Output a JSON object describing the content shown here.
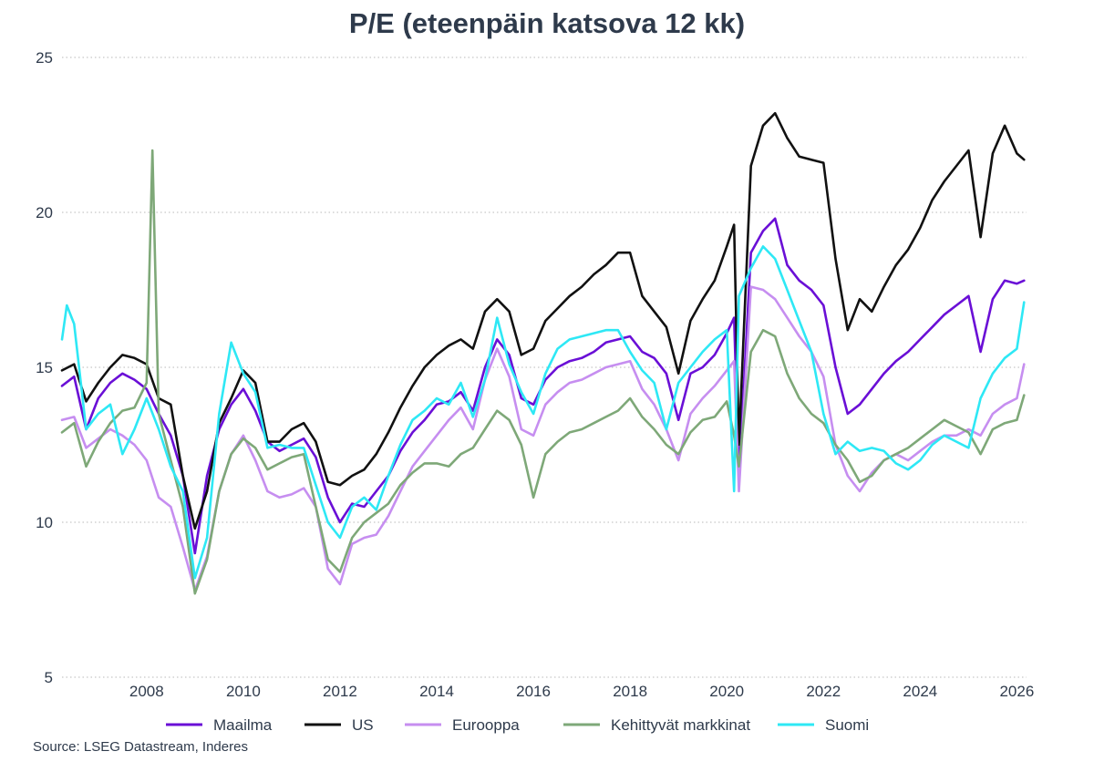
{
  "chart_data": {
    "type": "line",
    "title": "P/E (eteenpäin katsova 12 kk)",
    "source": "Source: LSEG Datastream, Inderes",
    "xlabel": "",
    "ylabel": "",
    "xlim": [
      2006.25,
      2026.2
    ],
    "ylim": [
      5,
      25
    ],
    "y_ticks": [
      5,
      10,
      15,
      20,
      25
    ],
    "x_ticks": [
      2008,
      2010,
      2012,
      2014,
      2016,
      2018,
      2020,
      2022,
      2024,
      2026
    ],
    "grid": "horizontal dotted",
    "legend_position": "bottom",
    "series": [
      {
        "name": "Maailma",
        "color": "#6a0fd6",
        "x": [
          2006.25,
          2006.5,
          2006.75,
          2007.0,
          2007.25,
          2007.5,
          2007.75,
          2008.0,
          2008.25,
          2008.5,
          2008.75,
          2009.0,
          2009.25,
          2009.5,
          2009.75,
          2010.0,
          2010.25,
          2010.5,
          2010.75,
          2011.0,
          2011.25,
          2011.5,
          2011.75,
          2012.0,
          2012.25,
          2012.5,
          2012.75,
          2013.0,
          2013.25,
          2013.5,
          2013.75,
          2014.0,
          2014.25,
          2014.5,
          2014.75,
          2015.0,
          2015.25,
          2015.5,
          2015.75,
          2016.0,
          2016.25,
          2016.5,
          2016.75,
          2017.0,
          2017.25,
          2017.5,
          2017.75,
          2018.0,
          2018.25,
          2018.5,
          2018.75,
          2019.0,
          2019.25,
          2019.5,
          2019.75,
          2020.0,
          2020.15,
          2020.25,
          2020.5,
          2020.75,
          2021.0,
          2021.25,
          2021.5,
          2021.75,
          2022.0,
          2022.25,
          2022.5,
          2022.75,
          2023.0,
          2023.25,
          2023.5,
          2023.75,
          2024.0,
          2024.25,
          2024.5,
          2024.75,
          2025.0,
          2025.25,
          2025.5,
          2025.75,
          2026.0,
          2026.15
        ],
        "values": [
          14.4,
          14.7,
          13.0,
          14.0,
          14.5,
          14.8,
          14.6,
          14.3,
          13.5,
          12.8,
          11.5,
          9.0,
          11.5,
          13.0,
          13.8,
          14.3,
          13.6,
          12.6,
          12.3,
          12.5,
          12.7,
          12.1,
          10.8,
          10.0,
          10.6,
          10.5,
          11.0,
          11.5,
          12.3,
          12.9,
          13.3,
          13.8,
          13.9,
          14.2,
          13.6,
          15.0,
          15.9,
          15.4,
          14.0,
          13.8,
          14.6,
          15.0,
          15.2,
          15.3,
          15.5,
          15.8,
          15.9,
          16.0,
          15.5,
          15.3,
          14.8,
          13.3,
          14.8,
          15.0,
          15.4,
          16.1,
          16.6,
          11.5,
          18.7,
          19.4,
          19.8,
          18.3,
          17.8,
          17.5,
          17.0,
          15.0,
          13.5,
          13.8,
          14.3,
          14.8,
          15.2,
          15.5,
          15.9,
          16.3,
          16.7,
          17.0,
          17.3,
          15.5,
          17.2,
          17.8,
          17.7,
          17.8
        ]
      },
      {
        "name": "US",
        "color": "#111111",
        "x": [
          2006.25,
          2006.5,
          2006.75,
          2007.0,
          2007.25,
          2007.5,
          2007.75,
          2008.0,
          2008.25,
          2008.5,
          2008.75,
          2009.0,
          2009.25,
          2009.5,
          2009.75,
          2010.0,
          2010.25,
          2010.5,
          2010.75,
          2011.0,
          2011.25,
          2011.5,
          2011.75,
          2012.0,
          2012.25,
          2012.5,
          2012.75,
          2013.0,
          2013.25,
          2013.5,
          2013.75,
          2014.0,
          2014.25,
          2014.5,
          2014.75,
          2015.0,
          2015.25,
          2015.5,
          2015.75,
          2016.0,
          2016.25,
          2016.5,
          2016.75,
          2017.0,
          2017.25,
          2017.5,
          2017.75,
          2018.0,
          2018.25,
          2018.5,
          2018.75,
          2019.0,
          2019.25,
          2019.5,
          2019.75,
          2020.0,
          2020.15,
          2020.25,
          2020.5,
          2020.75,
          2021.0,
          2021.25,
          2021.5,
          2021.75,
          2022.0,
          2022.25,
          2022.5,
          2022.75,
          2023.0,
          2023.25,
          2023.5,
          2023.75,
          2024.0,
          2024.25,
          2024.5,
          2024.75,
          2025.0,
          2025.25,
          2025.5,
          2025.75,
          2026.0,
          2026.15
        ],
        "values": [
          14.9,
          15.1,
          13.9,
          14.5,
          15.0,
          15.4,
          15.3,
          15.1,
          14.0,
          13.8,
          11.5,
          9.8,
          11.0,
          13.2,
          14.0,
          14.9,
          14.5,
          12.6,
          12.6,
          13.0,
          13.2,
          12.6,
          11.3,
          11.2,
          11.5,
          11.7,
          12.2,
          12.9,
          13.7,
          14.4,
          15.0,
          15.4,
          15.7,
          15.9,
          15.6,
          16.8,
          17.2,
          16.8,
          15.4,
          15.6,
          16.5,
          16.9,
          17.3,
          17.6,
          18.0,
          18.3,
          18.7,
          18.7,
          17.3,
          16.8,
          16.3,
          14.8,
          16.5,
          17.2,
          17.8,
          18.9,
          19.6,
          12.5,
          21.5,
          22.8,
          23.2,
          22.4,
          21.8,
          21.7,
          21.6,
          18.5,
          16.2,
          17.2,
          16.8,
          17.6,
          18.3,
          18.8,
          19.5,
          20.4,
          21.0,
          21.5,
          22.0,
          19.2,
          21.9,
          22.8,
          21.9,
          21.7
        ]
      },
      {
        "name": "Eurooppa",
        "color": "#c68ef0",
        "x": [
          2006.25,
          2006.5,
          2006.75,
          2007.0,
          2007.25,
          2007.5,
          2007.75,
          2008.0,
          2008.25,
          2008.5,
          2008.75,
          2009.0,
          2009.25,
          2009.5,
          2009.75,
          2010.0,
          2010.25,
          2010.5,
          2010.75,
          2011.0,
          2011.25,
          2011.5,
          2011.75,
          2012.0,
          2012.25,
          2012.5,
          2012.75,
          2013.0,
          2013.25,
          2013.5,
          2013.75,
          2014.0,
          2014.25,
          2014.5,
          2014.75,
          2015.0,
          2015.25,
          2015.5,
          2015.75,
          2016.0,
          2016.25,
          2016.5,
          2016.75,
          2017.0,
          2017.25,
          2017.5,
          2017.75,
          2018.0,
          2018.25,
          2018.5,
          2018.75,
          2019.0,
          2019.25,
          2019.5,
          2019.75,
          2020.0,
          2020.15,
          2020.25,
          2020.5,
          2020.75,
          2021.0,
          2021.25,
          2021.5,
          2021.75,
          2022.0,
          2022.25,
          2022.5,
          2022.75,
          2023.0,
          2023.25,
          2023.5,
          2023.75,
          2024.0,
          2024.25,
          2024.5,
          2024.75,
          2025.0,
          2025.25,
          2025.5,
          2025.75,
          2026.0,
          2026.15
        ],
        "values": [
          13.3,
          13.4,
          12.4,
          12.7,
          13.0,
          12.8,
          12.5,
          12.0,
          10.8,
          10.5,
          9.2,
          7.8,
          8.9,
          11.0,
          12.2,
          12.8,
          12.0,
          11.0,
          10.8,
          10.9,
          11.1,
          10.5,
          8.5,
          8.0,
          9.3,
          9.5,
          9.6,
          10.2,
          11.0,
          11.8,
          12.3,
          12.8,
          13.3,
          13.7,
          13.0,
          14.6,
          15.6,
          14.7,
          13.0,
          12.8,
          13.8,
          14.2,
          14.5,
          14.6,
          14.8,
          15.0,
          15.1,
          15.2,
          14.3,
          13.8,
          13.0,
          12.0,
          13.5,
          14.0,
          14.4,
          14.9,
          15.2,
          11.0,
          17.6,
          17.5,
          17.2,
          16.6,
          16.0,
          15.5,
          14.7,
          12.5,
          11.5,
          11.0,
          11.6,
          12.0,
          12.2,
          12.0,
          12.3,
          12.6,
          12.8,
          12.8,
          13.0,
          12.8,
          13.5,
          13.8,
          14.0,
          15.1
        ]
      },
      {
        "name": "Kehittyvät markkinat",
        "color": "#7ea878",
        "x": [
          2006.25,
          2006.5,
          2006.75,
          2007.0,
          2007.25,
          2007.5,
          2007.75,
          2008.0,
          2008.12,
          2008.25,
          2008.5,
          2008.75,
          2009.0,
          2009.25,
          2009.5,
          2009.75,
          2010.0,
          2010.25,
          2010.5,
          2010.75,
          2011.0,
          2011.25,
          2011.5,
          2011.75,
          2012.0,
          2012.25,
          2012.5,
          2012.75,
          2013.0,
          2013.25,
          2013.5,
          2013.75,
          2014.0,
          2014.25,
          2014.5,
          2014.75,
          2015.0,
          2015.25,
          2015.5,
          2015.75,
          2016.0,
          2016.25,
          2016.5,
          2016.75,
          2017.0,
          2017.25,
          2017.5,
          2017.75,
          2018.0,
          2018.25,
          2018.5,
          2018.75,
          2019.0,
          2019.25,
          2019.5,
          2019.75,
          2020.0,
          2020.15,
          2020.25,
          2020.5,
          2020.75,
          2021.0,
          2021.25,
          2021.5,
          2021.75,
          2022.0,
          2022.25,
          2022.5,
          2022.75,
          2023.0,
          2023.25,
          2023.5,
          2023.75,
          2024.0,
          2024.25,
          2024.5,
          2024.75,
          2025.0,
          2025.25,
          2025.5,
          2025.75,
          2026.0,
          2026.15
        ],
        "values": [
          12.9,
          13.2,
          11.8,
          12.6,
          13.2,
          13.6,
          13.7,
          14.5,
          22.0,
          13.5,
          12.0,
          10.5,
          7.7,
          8.8,
          11.0,
          12.2,
          12.7,
          12.4,
          11.7,
          11.9,
          12.1,
          12.2,
          10.5,
          8.8,
          8.4,
          9.5,
          10.0,
          10.3,
          10.6,
          11.2,
          11.6,
          11.9,
          11.9,
          11.8,
          12.2,
          12.4,
          13.0,
          13.6,
          13.3,
          12.5,
          10.8,
          12.2,
          12.6,
          12.9,
          13.0,
          13.2,
          13.4,
          13.6,
          14.0,
          13.4,
          13.0,
          12.5,
          12.2,
          12.9,
          13.3,
          13.4,
          13.9,
          12.8,
          11.8,
          15.5,
          16.2,
          16.0,
          14.8,
          14.0,
          13.5,
          13.2,
          12.5,
          12.0,
          11.3,
          11.5,
          12.0,
          12.2,
          12.4,
          12.7,
          13.0,
          13.3,
          13.1,
          12.9,
          12.2,
          13.0,
          13.2,
          13.3,
          14.1
        ]
      },
      {
        "name": "Suomi",
        "color": "#2ee8f5",
        "x": [
          2006.25,
          2006.35,
          2006.5,
          2006.75,
          2007.0,
          2007.25,
          2007.5,
          2007.75,
          2008.0,
          2008.25,
          2008.5,
          2008.75,
          2009.0,
          2009.25,
          2009.5,
          2009.75,
          2010.0,
          2010.25,
          2010.5,
          2010.75,
          2011.0,
          2011.25,
          2011.5,
          2011.75,
          2012.0,
          2012.25,
          2012.5,
          2012.75,
          2013.0,
          2013.25,
          2013.5,
          2013.75,
          2014.0,
          2014.25,
          2014.5,
          2014.75,
          2015.0,
          2015.25,
          2015.5,
          2015.75,
          2016.0,
          2016.25,
          2016.5,
          2016.75,
          2017.0,
          2017.25,
          2017.5,
          2017.75,
          2018.0,
          2018.25,
          2018.5,
          2018.75,
          2019.0,
          2019.25,
          2019.5,
          2019.75,
          2020.0,
          2020.15,
          2020.25,
          2020.5,
          2020.75,
          2021.0,
          2021.25,
          2021.5,
          2021.75,
          2022.0,
          2022.25,
          2022.5,
          2022.75,
          2023.0,
          2023.25,
          2023.5,
          2023.75,
          2024.0,
          2024.25,
          2024.5,
          2024.75,
          2025.0,
          2025.25,
          2025.5,
          2025.75,
          2026.0,
          2026.15
        ],
        "values": [
          15.9,
          17.0,
          16.4,
          13.0,
          13.5,
          13.8,
          12.2,
          13.0,
          14.0,
          13.0,
          11.8,
          11.0,
          8.2,
          9.5,
          13.5,
          15.8,
          14.8,
          14.2,
          12.4,
          12.5,
          12.4,
          12.4,
          11.2,
          10.0,
          9.5,
          10.5,
          10.8,
          10.4,
          11.5,
          12.5,
          13.3,
          13.6,
          14.0,
          13.8,
          14.5,
          13.4,
          14.6,
          16.6,
          15.1,
          14.2,
          13.5,
          14.8,
          15.6,
          15.9,
          16.0,
          16.1,
          16.2,
          16.2,
          15.5,
          14.9,
          14.5,
          13.0,
          14.5,
          15.0,
          15.5,
          15.9,
          16.2,
          11.0,
          17.3,
          18.2,
          18.9,
          18.5,
          17.5,
          16.5,
          15.5,
          13.5,
          12.2,
          12.6,
          12.3,
          12.4,
          12.3,
          11.9,
          11.7,
          12.0,
          12.5,
          12.8,
          12.6,
          12.4,
          14.0,
          14.8,
          15.3,
          15.6,
          17.1
        ]
      }
    ]
  }
}
